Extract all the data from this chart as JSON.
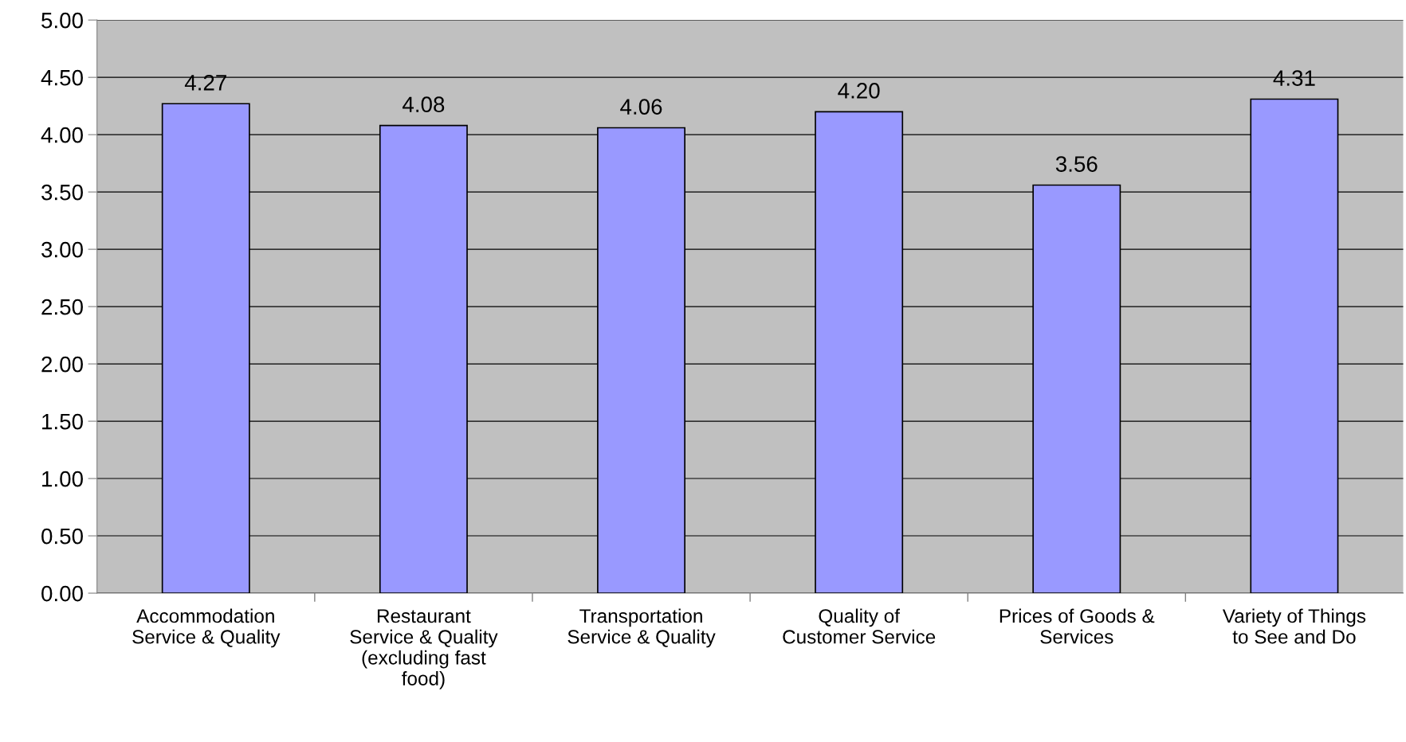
{
  "chart_data": {
    "type": "bar",
    "categories": [
      "Accommodation\nService & Quality",
      "Restaurant\nService & Quality\n(excluding fast\nfood)",
      "Transportation\nService & Quality",
      "Quality of\nCustomer Service",
      "Prices of Goods &\nServices",
      "Variety of Things\nto See and Do"
    ],
    "values": [
      4.27,
      4.08,
      4.06,
      4.2,
      3.56,
      4.31
    ],
    "value_labels": [
      "4.27",
      "4.08",
      "4.06",
      "4.20",
      "3.56",
      "4.31"
    ],
    "color": "#9999ff",
    "ylim": [
      0,
      5
    ],
    "yticks": [
      {
        "value": 0,
        "label": "0.00"
      },
      {
        "value": 0.5,
        "label": "0.50"
      },
      {
        "value": 1,
        "label": "1.00"
      },
      {
        "value": 1.5,
        "label": "1.50"
      },
      {
        "value": 2,
        "label": "2.00"
      },
      {
        "value": 2.5,
        "label": "2.50"
      },
      {
        "value": 3,
        "label": "3.00"
      },
      {
        "value": 3.5,
        "label": "3.50"
      },
      {
        "value": 4,
        "label": "4.00"
      },
      {
        "value": 4.5,
        "label": "4.50"
      },
      {
        "value": 5,
        "label": "5.00"
      }
    ],
    "grid": "y",
    "legend": false
  }
}
